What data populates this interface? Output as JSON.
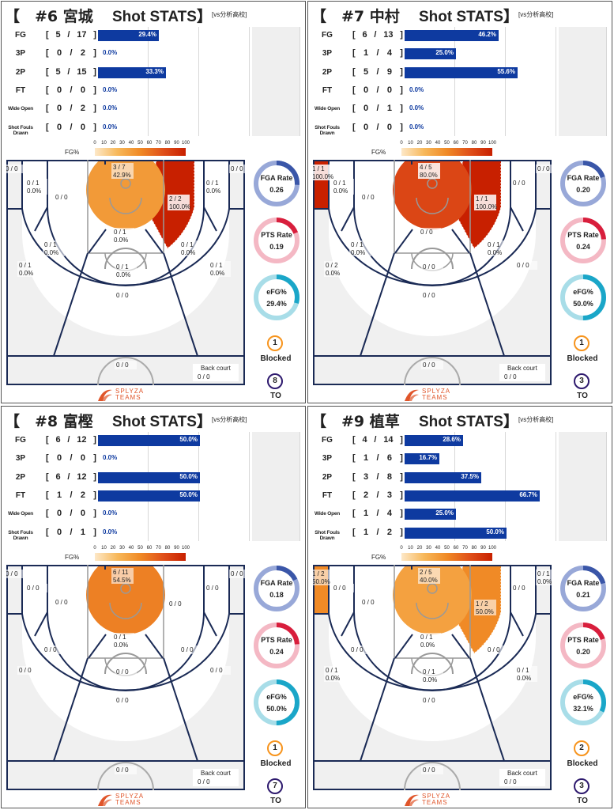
{
  "header": {
    "bracket_open": "【",
    "shot_label": "Shot STATS】",
    "vs_label": "[vs分析高校]"
  },
  "stat_labels": [
    "FG",
    "3P",
    "2P",
    "FT",
    "Wide Open",
    "Shot Fouls Drawn"
  ],
  "legend": {
    "label": "FG%",
    "ticks": [
      "0",
      "10",
      "20",
      "30",
      "40",
      "50",
      "60",
      "70",
      "80",
      "90",
      "100"
    ]
  },
  "side_labels": {
    "fga": "FGA Rate",
    "pts": "PTS Rate",
    "efg": "eFG%",
    "blocked": "Blocked",
    "to": "TO"
  },
  "logo": {
    "line1": "SPLYZA",
    "line2": "TEAMS"
  },
  "colors": {
    "bar": "#0e3aa0",
    "fga_ring": "#98a8d8",
    "fga_arc": "#3a56a8",
    "pts_ring": "#f4b8c4",
    "pts_arc": "#d81e3c",
    "efg_ring": "#a8dde8",
    "efg_arc": "#1aa6c8"
  },
  "chart_data": [
    {
      "type": "bar",
      "player": "#6 宮城",
      "categories": [
        "FG",
        "3P",
        "2P",
        "FT",
        "Wide Open",
        "Shot Fouls Drawn"
      ],
      "made": [
        5,
        0,
        5,
        0,
        0,
        0
      ],
      "attempts": [
        17,
        2,
        15,
        0,
        2,
        0
      ],
      "pct_labels": [
        "29.4%",
        "0.0%",
        "33.3%",
        "0.0%",
        "0.0%",
        "0.0%"
      ],
      "values": [
        29.4,
        0,
        33.3,
        0,
        0,
        0
      ],
      "xlim": [
        0,
        100
      ],
      "zones": {
        "paint": {
          "frac": "3 / 7",
          "pct": "42.9%",
          "v": 42.9
        },
        "right_mid_short": {
          "frac": "2 / 2",
          "pct": "100.0%",
          "v": 100
        },
        "left_corner3": {
          "frac": "0 / 0",
          "pct": "",
          "v": null
        },
        "right_corner3": {
          "frac": "0 / 0",
          "pct": "",
          "v": null
        },
        "left_baseline_mid": {
          "frac": "0 / 1",
          "pct": "0.0%",
          "v": 0
        },
        "left_short": {
          "frac": "0 / 0",
          "pct": "",
          "v": null
        },
        "right_baseline_mid": {
          "frac": "0 / 1",
          "pct": "0.0%",
          "v": 0
        },
        "left_elbow": {
          "frac": "0 / 1",
          "pct": "0.0%",
          "v": 0
        },
        "center_mid": {
          "frac": "0 / 1",
          "pct": "0.0%",
          "v": 0
        },
        "right_elbow": {
          "frac": "0 / 1",
          "pct": "0.0%",
          "v": 0
        },
        "ft_circle": {
          "frac": "0 / 1",
          "pct": "0.0%",
          "v": 0
        },
        "left_wing3": {
          "frac": "0 / 1",
          "pct": "0.0%",
          "v": 0
        },
        "right_wing3": {
          "frac": "0 / 1",
          "pct": "0.0%",
          "v": 0
        },
        "top3": {
          "frac": "0 / 0",
          "pct": "",
          "v": null
        },
        "halfcourt": {
          "frac": "0 / 0",
          "pct": "",
          "v": null
        },
        "backcourt": {
          "frac": "0 / 0",
          "pct": "",
          "v": null
        }
      },
      "fga_rate": 0.26,
      "pts_rate": 0.19,
      "efg": "29.4%",
      "efg_value": 29.4,
      "blocked": 1,
      "to": 8
    },
    {
      "type": "bar",
      "player": "#7 中村",
      "categories": [
        "FG",
        "3P",
        "2P",
        "FT",
        "Wide Open",
        "Shot Fouls Drawn"
      ],
      "made": [
        6,
        1,
        5,
        0,
        0,
        0
      ],
      "attempts": [
        13,
        4,
        9,
        0,
        1,
        0
      ],
      "pct_labels": [
        "46.2%",
        "25.0%",
        "55.6%",
        "0.0%",
        "0.0%",
        "0.0%"
      ],
      "values": [
        46.2,
        25.0,
        55.6,
        0,
        0,
        0
      ],
      "xlim": [
        0,
        100
      ],
      "zones": {
        "paint": {
          "frac": "4 / 5",
          "pct": "80.0%",
          "v": 80
        },
        "right_mid_short": {
          "frac": "1 / 1",
          "pct": "100.0%",
          "v": 100
        },
        "left_corner3": {
          "frac": "1 / 1",
          "pct": "100.0%",
          "v": 100
        },
        "right_corner3": {
          "frac": "0 / 0",
          "pct": "",
          "v": null
        },
        "left_baseline_mid": {
          "frac": "0 / 1",
          "pct": "0.0%",
          "v": 0
        },
        "left_short": {
          "frac": "0 / 0",
          "pct": "",
          "v": null
        },
        "right_baseline_mid": {
          "frac": "0 / 0",
          "pct": "",
          "v": null
        },
        "left_elbow": {
          "frac": "0 / 1",
          "pct": "0.0%",
          "v": 0
        },
        "center_mid": {
          "frac": "0 / 0",
          "pct": "",
          "v": null
        },
        "right_elbow": {
          "frac": "0 / 1",
          "pct": "0.0%",
          "v": 0
        },
        "ft_circle": {
          "frac": "0 / 0",
          "pct": "",
          "v": null
        },
        "left_wing3": {
          "frac": "0 / 2",
          "pct": "0.0%",
          "v": 0
        },
        "right_wing3": {
          "frac": "0 / 0",
          "pct": "",
          "v": null
        },
        "top3": {
          "frac": "0 / 0",
          "pct": "",
          "v": null
        },
        "halfcourt": {
          "frac": "0 / 0",
          "pct": "",
          "v": null
        },
        "backcourt": {
          "frac": "0 / 0",
          "pct": "",
          "v": null
        }
      },
      "fga_rate": 0.2,
      "pts_rate": 0.24,
      "efg": "50.0%",
      "efg_value": 50.0,
      "blocked": 1,
      "to": 3
    },
    {
      "type": "bar",
      "player": "#8 富樫",
      "categories": [
        "FG",
        "3P",
        "2P",
        "FT",
        "Wide Open",
        "Shot Fouls Drawn"
      ],
      "made": [
        6,
        0,
        6,
        1,
        0,
        0
      ],
      "attempts": [
        12,
        0,
        12,
        2,
        0,
        1
      ],
      "pct_labels": [
        "50.0%",
        "0.0%",
        "50.0%",
        "50.0%",
        "0.0%",
        "0.0%"
      ],
      "values": [
        50.0,
        0,
        50.0,
        50.0,
        0,
        0
      ],
      "xlim": [
        0,
        100
      ],
      "zones": {
        "paint": {
          "frac": "6 / 11",
          "pct": "54.5%",
          "v": 54.5
        },
        "right_mid_short": {
          "frac": "0 / 0",
          "pct": "",
          "v": null
        },
        "left_corner3": {
          "frac": "0 / 0",
          "pct": "",
          "v": null
        },
        "right_corner3": {
          "frac": "0 / 0",
          "pct": "",
          "v": null
        },
        "left_baseline_mid": {
          "frac": "0 / 0",
          "pct": "",
          "v": null
        },
        "left_short": {
          "frac": "0 / 0",
          "pct": "",
          "v": null
        },
        "right_baseline_mid": {
          "frac": "0 / 0",
          "pct": "",
          "v": null
        },
        "left_elbow": {
          "frac": "0 / 0",
          "pct": "",
          "v": null
        },
        "center_mid": {
          "frac": "0 / 1",
          "pct": "0.0%",
          "v": 0
        },
        "right_elbow": {
          "frac": "0 / 0",
          "pct": "",
          "v": null
        },
        "ft_circle": {
          "frac": "0 / 0",
          "pct": "",
          "v": null
        },
        "left_wing3": {
          "frac": "0 / 0",
          "pct": "",
          "v": null
        },
        "right_wing3": {
          "frac": "0 / 0",
          "pct": "",
          "v": null
        },
        "top3": {
          "frac": "0 / 0",
          "pct": "",
          "v": null
        },
        "halfcourt": {
          "frac": "0 / 0",
          "pct": "",
          "v": null
        },
        "backcourt": {
          "frac": "0 / 0",
          "pct": "",
          "v": null
        }
      },
      "fga_rate": 0.18,
      "pts_rate": 0.24,
      "efg": "50.0%",
      "efg_value": 50.0,
      "blocked": 1,
      "to": 7
    },
    {
      "type": "bar",
      "player": "#9 植草",
      "categories": [
        "FG",
        "3P",
        "2P",
        "FT",
        "Wide Open",
        "Shot Fouls Drawn"
      ],
      "made": [
        4,
        1,
        3,
        2,
        1,
        1
      ],
      "attempts": [
        14,
        6,
        8,
        3,
        4,
        2
      ],
      "pct_labels": [
        "28.6%",
        "16.7%",
        "37.5%",
        "66.7%",
        "25.0%",
        "50.0%"
      ],
      "values": [
        28.6,
        16.7,
        37.5,
        66.7,
        25.0,
        50.0
      ],
      "xlim": [
        0,
        100
      ],
      "zones": {
        "paint": {
          "frac": "2 / 5",
          "pct": "40.0%",
          "v": 40
        },
        "right_mid_short": {
          "frac": "1 / 2",
          "pct": "50.0%",
          "v": 50
        },
        "left_corner3": {
          "frac": "1 / 2",
          "pct": "50.0%",
          "v": 50
        },
        "right_corner3": {
          "frac": "0 / 1",
          "pct": "0.0%",
          "v": 0
        },
        "left_baseline_mid": {
          "frac": "0 / 0",
          "pct": "",
          "v": null
        },
        "left_short": {
          "frac": "0 / 0",
          "pct": "",
          "v": null
        },
        "right_baseline_mid": {
          "frac": "0 / 0",
          "pct": "",
          "v": null
        },
        "left_elbow": {
          "frac": "0 / 0",
          "pct": "",
          "v": null
        },
        "center_mid": {
          "frac": "0 / 1",
          "pct": "0.0%",
          "v": 0
        },
        "right_elbow": {
          "frac": "0 / 0",
          "pct": "",
          "v": null
        },
        "ft_circle": {
          "frac": "0 / 1",
          "pct": "0.0%",
          "v": 0
        },
        "left_wing3": {
          "frac": "0 / 1",
          "pct": "0.0%",
          "v": 0
        },
        "right_wing3": {
          "frac": "0 / 1",
          "pct": "0.0%",
          "v": 0
        },
        "top3": {
          "frac": "0 / 0",
          "pct": "",
          "v": null
        },
        "halfcourt": {
          "frac": "0 / 0",
          "pct": "",
          "v": null
        },
        "backcourt": {
          "frac": "0 / 0",
          "pct": "",
          "v": null
        }
      },
      "fga_rate": 0.21,
      "pts_rate": 0.2,
      "efg": "32.1%",
      "efg_value": 32.1,
      "blocked": 2,
      "to": 3
    }
  ]
}
